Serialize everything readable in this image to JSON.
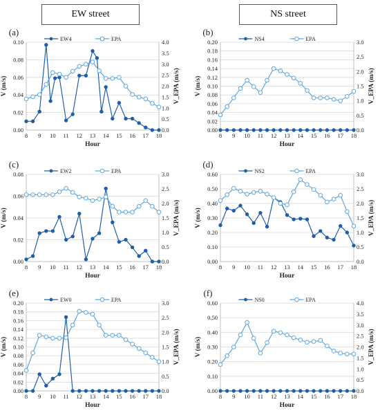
{
  "headers": {
    "left": "EW street",
    "right": "NS street"
  },
  "colors": {
    "primary": "#1f5fa8",
    "secondary": "#5ea6dc"
  },
  "chart_data": [
    {
      "id": "a",
      "label": "(a)",
      "type": "line",
      "xlabel": "Hour",
      "ylabel": "V (m/s)",
      "y2label": "V_EPA (m/s)",
      "xlim": [
        8,
        18
      ],
      "xticks": [
        8,
        9,
        10,
        11,
        12,
        13,
        14,
        15,
        16,
        17,
        18
      ],
      "ylim": [
        0,
        0.1
      ],
      "yticks": [
        0,
        0.02,
        0.04,
        0.06,
        0.08,
        0.1
      ],
      "y2lim": [
        0,
        4.0
      ],
      "y2ticks": [
        0,
        0.5,
        1.0,
        1.5,
        2.0,
        2.5,
        3.0,
        3.5,
        4.0
      ],
      "y_decimals": 2,
      "y2_decimals": 1,
      "series": [
        {
          "name": "EW4",
          "axis": "left",
          "style": "filled",
          "x": [
            8,
            8.5,
            9,
            9.5,
            9.83,
            10.17,
            10.5,
            11,
            11.5,
            12,
            12.5,
            13,
            13.33,
            13.67,
            14,
            14.5,
            15,
            15.5,
            16,
            16.5,
            17,
            17.5,
            18
          ],
          "y": [
            0.01,
            0.01,
            0.021,
            0.097,
            0.033,
            0.059,
            0.06,
            0.011,
            0.018,
            0.062,
            0.062,
            0.09,
            0.082,
            0.021,
            0.049,
            0.013,
            0.031,
            0.013,
            0.013,
            0.008,
            0.003,
            0.0,
            0.0
          ]
        },
        {
          "name": "EPA",
          "axis": "right",
          "style": "open",
          "x": [
            8,
            8.5,
            9,
            9.5,
            10,
            10.5,
            11,
            11.5,
            12,
            12.5,
            13,
            13.5,
            14,
            14.5,
            15,
            15.5,
            16,
            16.5,
            17,
            17.5,
            18
          ],
          "y": [
            1.42,
            1.52,
            1.62,
            2.08,
            2.62,
            2.55,
            2.4,
            2.68,
            2.9,
            3.0,
            3.1,
            2.7,
            2.35,
            2.35,
            2.4,
            2.0,
            1.62,
            1.5,
            1.42,
            1.22,
            1.05
          ]
        }
      ]
    },
    {
      "id": "b",
      "label": "(b)",
      "type": "line",
      "xlabel": "Hour",
      "ylabel": "V (m/s)",
      "y2label": "V_EPA (m/s)",
      "xlim": [
        8,
        18
      ],
      "xticks": [
        8,
        9,
        10,
        11,
        12,
        13,
        14,
        15,
        16,
        17,
        18
      ],
      "ylim": [
        0,
        0.2
      ],
      "yticks": [
        0,
        0.02,
        0.04,
        0.06,
        0.08,
        0.1,
        0.12,
        0.14,
        0.16,
        0.18,
        0.2
      ],
      "y2lim": [
        0,
        3.0
      ],
      "y2ticks": [
        0,
        0.5,
        1.0,
        1.5,
        2.0,
        2.5,
        3.0
      ],
      "y_decimals": 2,
      "y2_decimals": 1,
      "series": [
        {
          "name": "NS4",
          "axis": "left",
          "style": "filled",
          "x": [
            8,
            8.5,
            9,
            9.5,
            10,
            10.5,
            11,
            11.5,
            12,
            12.5,
            13,
            13.5,
            14,
            14.5,
            15,
            15.5,
            16,
            16.5,
            17,
            17.5,
            18
          ],
          "y": [
            0,
            0,
            0,
            0,
            0,
            0,
            0,
            0,
            0,
            0,
            0,
            0,
            0,
            0,
            0,
            0,
            0,
            0,
            0,
            0,
            0
          ]
        },
        {
          "name": "EPA",
          "axis": "right",
          "style": "open",
          "x": [
            8,
            8.5,
            9,
            9.5,
            10,
            10.5,
            11,
            11.5,
            12,
            12.5,
            13,
            13.5,
            14,
            14.5,
            15,
            15.5,
            16,
            16.5,
            17,
            17.5,
            18
          ],
          "y": [
            0.52,
            0.8,
            1.1,
            1.42,
            1.7,
            1.48,
            1.28,
            1.7,
            2.1,
            2.02,
            1.9,
            1.78,
            1.6,
            1.35,
            1.1,
            1.1,
            1.1,
            1.05,
            1.0,
            1.15,
            1.32
          ]
        }
      ]
    },
    {
      "id": "c",
      "label": "(c)",
      "type": "line",
      "xlabel": "Hour",
      "ylabel": "V (m/s)",
      "y2label": "V_EPA (m/s)",
      "xlim": [
        8,
        18
      ],
      "xticks": [
        8,
        9,
        10,
        11,
        12,
        13,
        14,
        15,
        16,
        17,
        18
      ],
      "ylim": [
        0,
        0.08
      ],
      "yticks": [
        0,
        0.02,
        0.04,
        0.06,
        0.08
      ],
      "y2lim": [
        0,
        3.0
      ],
      "y2ticks": [
        0,
        0.5,
        1.0,
        1.5,
        2.0,
        2.5,
        3.0
      ],
      "y_decimals": 2,
      "y2_decimals": 1,
      "series": [
        {
          "name": "EW2",
          "axis": "left",
          "style": "filled",
          "x": [
            8,
            8.5,
            9,
            9.5,
            10,
            10.5,
            11,
            11.5,
            12,
            12.5,
            13,
            13.5,
            14,
            14.5,
            15,
            15.5,
            16,
            16.5,
            17,
            17.5,
            18
          ],
          "y": [
            0.002,
            0.005,
            0.026,
            0.028,
            0.028,
            0.041,
            0.02,
            0.023,
            0.044,
            0.002,
            0.021,
            0.026,
            0.067,
            0.036,
            0.018,
            0.02,
            0.013,
            0.005,
            0.01,
            0.0,
            0.0
          ]
        },
        {
          "name": "EPA",
          "axis": "right",
          "style": "open",
          "x": [
            8,
            8.5,
            9,
            9.5,
            10,
            10.5,
            11,
            11.5,
            12,
            12.5,
            13,
            13.5,
            14,
            14.5,
            15,
            15.5,
            16,
            16.5,
            17,
            17.5,
            18
          ],
          "y": [
            2.3,
            2.3,
            2.3,
            2.3,
            2.3,
            2.4,
            2.52,
            2.38,
            2.22,
            2.18,
            2.1,
            2.15,
            2.22,
            1.9,
            1.7,
            1.7,
            1.7,
            1.9,
            2.1,
            1.9,
            1.7
          ]
        }
      ]
    },
    {
      "id": "d",
      "label": "(d)",
      "type": "line",
      "xlabel": "Hour",
      "ylabel": "V (m/s)",
      "y2label": "V_EPA (m/s)",
      "xlim": [
        8,
        18
      ],
      "xticks": [
        8,
        9,
        10,
        11,
        12,
        13,
        14,
        15,
        16,
        17,
        18
      ],
      "ylim": [
        0,
        0.6
      ],
      "yticks": [
        0,
        0.1,
        0.2,
        0.3,
        0.4,
        0.5,
        0.6
      ],
      "y2lim": [
        0,
        3.0
      ],
      "y2ticks": [
        0,
        0.5,
        1.0,
        1.5,
        2.0,
        2.5,
        3.0
      ],
      "y_decimals": 2,
      "y2_decimals": 1,
      "series": [
        {
          "name": "NS2",
          "axis": "left",
          "style": "filled",
          "x": [
            8,
            8.5,
            9,
            9.5,
            10,
            10.5,
            11,
            11.5,
            12,
            12.5,
            13,
            13.5,
            14,
            14.5,
            15,
            15.5,
            16,
            16.5,
            17,
            17.5,
            18
          ],
          "y": [
            0.25,
            0.365,
            0.35,
            0.385,
            0.325,
            0.265,
            0.335,
            0.24,
            0.44,
            0.41,
            0.32,
            0.29,
            0.295,
            0.29,
            0.175,
            0.21,
            0.165,
            0.15,
            0.245,
            0.2,
            0.11
          ]
        },
        {
          "name": "EPA",
          "axis": "right",
          "style": "open",
          "x": [
            8,
            8.5,
            9,
            9.5,
            10,
            10.5,
            11,
            11.5,
            12,
            12.5,
            13,
            13.5,
            14,
            14.5,
            15,
            15.5,
            16,
            16.5,
            17,
            17.5,
            18
          ],
          "y": [
            2.1,
            2.3,
            2.52,
            2.42,
            2.32,
            2.38,
            2.42,
            2.32,
            2.2,
            2.0,
            1.95,
            2.4,
            2.82,
            2.65,
            2.48,
            2.28,
            2.05,
            2.15,
            2.28,
            1.72,
            1.22
          ]
        }
      ]
    },
    {
      "id": "e",
      "label": "(e)",
      "type": "line",
      "xlabel": "Hour",
      "ylabel": "V (m/s)",
      "y2label": "V_EPA (m/s)",
      "xlim": [
        8,
        18
      ],
      "xticks": [
        8,
        9,
        10,
        11,
        12,
        13,
        14,
        15,
        16,
        17,
        18
      ],
      "ylim": [
        0,
        0.2
      ],
      "yticks": [
        0,
        0.02,
        0.04,
        0.06,
        0.08,
        0.1,
        0.12,
        0.14,
        0.16,
        0.18,
        0.2
      ],
      "y2lim": [
        0,
        3.0
      ],
      "y2ticks": [
        0,
        0.5,
        1.0,
        1.5,
        2.0,
        2.5,
        3.0
      ],
      "y_decimals": 2,
      "y2_decimals": 1,
      "series": [
        {
          "name": "EW0",
          "axis": "left",
          "style": "filled",
          "x": [
            8,
            8.5,
            9,
            9.5,
            10,
            10.5,
            11,
            11.5,
            12,
            12.5,
            13,
            13.5,
            14,
            14.5,
            15,
            15.5,
            16,
            16.5,
            17,
            17.5,
            18
          ],
          "y": [
            0.0,
            0.0,
            0.038,
            0.012,
            0.028,
            0.038,
            0.168,
            0.0,
            0.0,
            0.0,
            0.0,
            0.0,
            0.0,
            0.0,
            0.0,
            0.0,
            0.0,
            0.0,
            0.0,
            0.0,
            0.0
          ]
        },
        {
          "name": "EPA",
          "axis": "right",
          "style": "open",
          "x": [
            8,
            8.5,
            9,
            9.5,
            10,
            10.5,
            11,
            11.5,
            12,
            12.5,
            13,
            13.5,
            14,
            14.5,
            15,
            15.5,
            16,
            16.5,
            17,
            17.5,
            18
          ],
          "y": [
            0.7,
            1.3,
            1.9,
            1.85,
            1.8,
            1.8,
            1.82,
            2.25,
            2.72,
            2.68,
            2.62,
            2.25,
            1.9,
            1.9,
            1.9,
            1.75,
            1.6,
            1.45,
            1.3,
            1.15,
            1.0
          ]
        }
      ]
    },
    {
      "id": "f",
      "label": "(f)",
      "type": "line",
      "xlabel": "Hour",
      "ylabel": "V (m/s)",
      "y2label": "V_EPA (m/s)",
      "xlim": [
        8,
        18
      ],
      "xticks": [
        8,
        9,
        10,
        11,
        12,
        13,
        14,
        15,
        16,
        17,
        18
      ],
      "ylim": [
        0,
        0.6
      ],
      "yticks": [
        0,
        0.1,
        0.2,
        0.3,
        0.4,
        0.5,
        0.6
      ],
      "y2lim": [
        0,
        4.0
      ],
      "y2ticks": [
        0,
        0.5,
        1.0,
        1.5,
        2.0,
        2.5,
        3.0,
        3.5,
        4.0
      ],
      "y_decimals": 2,
      "y2_decimals": 1,
      "series": [
        {
          "name": "NS0",
          "axis": "left",
          "style": "filled",
          "x": [
            8,
            8.5,
            9,
            9.5,
            10,
            10.5,
            11,
            11.5,
            12,
            12.5,
            13,
            13.5,
            14,
            14.5,
            15,
            15.5,
            16,
            16.5,
            17,
            17.5,
            18
          ],
          "y": [
            0,
            0,
            0,
            0,
            0,
            0,
            0,
            0,
            0,
            0,
            0,
            0,
            0,
            0,
            0,
            0,
            0,
            0,
            0,
            0,
            0
          ]
        },
        {
          "name": "EPA",
          "axis": "right",
          "style": "open",
          "x": [
            8,
            8.5,
            9,
            9.5,
            10,
            10.5,
            11,
            11.5,
            12,
            12.5,
            13,
            13.5,
            14,
            14.5,
            15,
            15.5,
            16,
            16.5,
            17,
            17.5,
            18
          ],
          "y": [
            1.2,
            1.6,
            2.0,
            2.55,
            3.12,
            2.4,
            1.72,
            2.2,
            2.72,
            2.65,
            2.55,
            2.42,
            2.32,
            2.22,
            2.25,
            2.3,
            2.05,
            1.82,
            1.72,
            1.68,
            1.68
          ]
        }
      ]
    }
  ]
}
